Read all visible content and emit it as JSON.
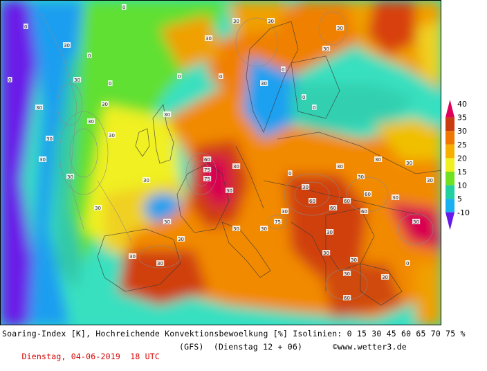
{
  "footer": {
    "line1": "Soaring-Index [K], Hochreichende Konvektionsbewoelkung [%] Isolinien: 0 15 30 45 60 65 70 75 %",
    "date": "Dienstag, 04-06-2019  18 UTC",
    "model": "(GFS)  (Dienstag 12 + 06)",
    "copyright": "©www.wetter3.de"
  },
  "legend": {
    "labels": [
      "40",
      "35",
      "30",
      "25",
      "20",
      "15",
      "10",
      "5",
      "-10"
    ],
    "colors": [
      "#e0005a",
      "#c83c10",
      "#f07800",
      "#f8b000",
      "#f0f020",
      "#70e020",
      "#20d0a0",
      "#18b0f0",
      "#6818e8"
    ]
  },
  "map": {
    "contour_labels": [
      "30",
      "30",
      "30",
      "0",
      "0",
      "30",
      "30",
      "30",
      "0",
      "30",
      "30",
      "60",
      "30",
      "30",
      "0",
      "30",
      "30",
      "60",
      "75",
      "30",
      "30",
      "0",
      "30",
      "0",
      "60",
      "30",
      "30",
      "30",
      "30",
      "0",
      "30",
      "60",
      "75",
      "30",
      "30",
      "30",
      "30",
      "30",
      "0",
      "0",
      "30",
      "30",
      "60",
      "30",
      "30",
      "30",
      "30",
      "60",
      "30",
      "0",
      "30",
      "30",
      "0",
      "30",
      "30",
      "75",
      "30",
      "30",
      "60",
      "30",
      "30",
      "0"
    ]
  }
}
